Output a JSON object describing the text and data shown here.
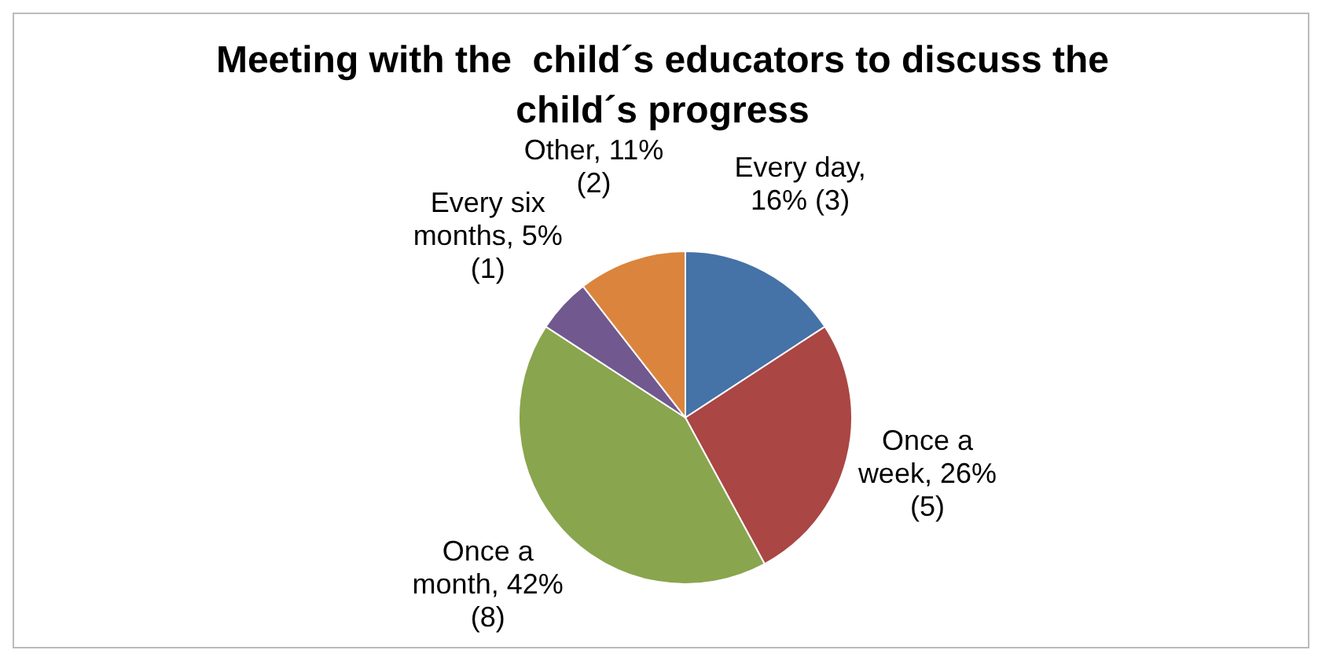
{
  "chart_data": {
    "type": "pie",
    "title": "Meeting with the  child´s educators to discuss the child´s progress",
    "categories": [
      "Every day",
      "Once a week",
      "Once a month",
      "Every six months",
      "Other"
    ],
    "values": [
      3,
      5,
      8,
      1,
      2
    ],
    "value_labels": [
      ", 16% (3)",
      ", 26% (5)",
      ", 42% (8)",
      ", 5% (1)",
      ", 11% (2)"
    ],
    "colors": [
      "#4572a7",
      "#aa4643",
      "#89a54e",
      "#71588f",
      "#db843d"
    ]
  }
}
